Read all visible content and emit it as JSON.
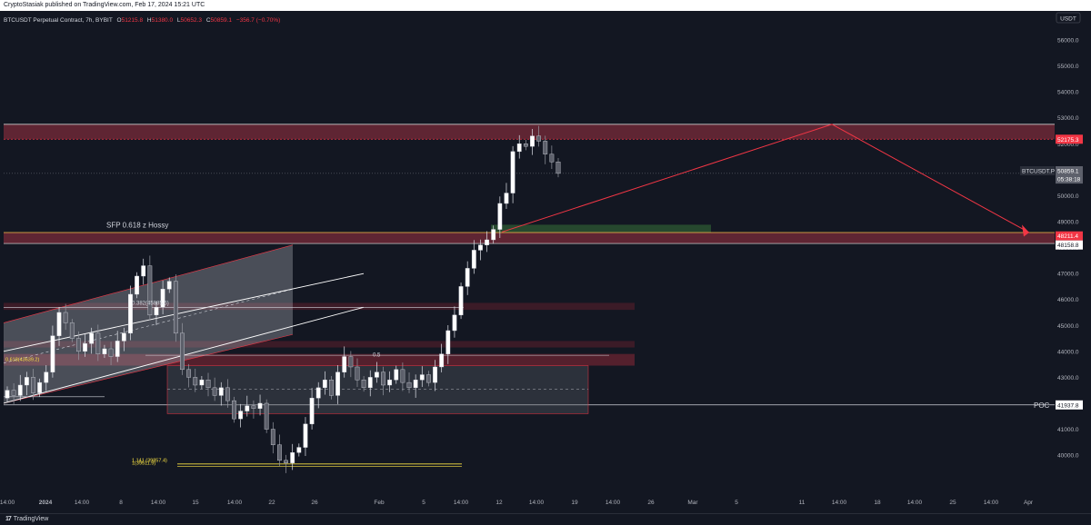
{
  "publisher_line": "CryptoStasiak published on TradingView.com, Feb 17, 2024 15:21 UTC",
  "chart_data": {
    "type": "candlestick",
    "symbol_line": {
      "symbol": "BTCUSDT Perpetual Contract, 7h, BYBIT",
      "o_label": "O",
      "o": "51215.8",
      "h_label": "H",
      "h": "51380.0",
      "l_label": "L",
      "l": "50652.3",
      "c_label": "C",
      "c": "50859.1",
      "change": "−356.7 (−0.70%)"
    },
    "currency": "USDT",
    "y_ticks": [
      "56000.0",
      "55000.0",
      "54000.0",
      "53000.0",
      "52000.0",
      "51000.0",
      "50000.0",
      "49000.0",
      "48000.0",
      "47000.0",
      "46000.0",
      "45000.0",
      "44000.0",
      "43000.0",
      "42000.0",
      "41000.0",
      "40000.0"
    ],
    "x_ticks": [
      "14:00",
      "2024",
      "14:00",
      "8",
      "14:00",
      "15",
      "14:00",
      "22",
      "26",
      "Feb",
      "5",
      "14:00",
      "12",
      "14:00",
      "19",
      "14:00",
      "26",
      "Mar",
      "5",
      "11",
      "14:00",
      "18",
      "14:00",
      "25",
      "14:00",
      "Apr"
    ],
    "price_labels": {
      "upper_zone": "52175.3",
      "current_symbol": "BTCUSDT.P",
      "current_price": "50859.1",
      "countdown": "05:38:18",
      "mid_zone": "48211.4",
      "mid_line": "48158.8",
      "poc_price": "41937.8"
    },
    "annotations": {
      "sfp": "SFP 0.618 z Hossy",
      "fib_0382": "0.382(45885.5)",
      "fib_0618": "0.618(43639.2)",
      "fib_05": "0.5",
      "fib_1141": "1.141 (39857.4)",
      "fib_1": "1(39511.9)",
      "poc": "POC"
    },
    "zones": [
      {
        "name": "upper-resistance",
        "y1": 52750,
        "y2": 52175,
        "color": "#7a2b3a"
      },
      {
        "name": "mid-resistance",
        "y1": 48580,
        "y2": 48158,
        "color": "#7a2b3a"
      },
      {
        "name": "green-fvg",
        "y1": 48880,
        "y2": 48580,
        "color": "#2e5a33"
      },
      {
        "name": "zone-45800",
        "y1": 45870,
        "y2": 45600,
        "color": "#4a1e2a"
      },
      {
        "name": "zone-44300",
        "y1": 44400,
        "y2": 44150,
        "color": "#4a1e2a"
      },
      {
        "name": "zone-43900",
        "y1": 43900,
        "y2": 43450,
        "color": "#6b2432"
      }
    ],
    "candles_close": [
      42500,
      42300,
      42700,
      43000,
      42400,
      42800,
      43200,
      44600,
      45500,
      45100,
      44500,
      44000,
      44300,
      44700,
      43900,
      44100,
      43800,
      44400,
      44700,
      46200,
      46900,
      47300,
      45400,
      45700,
      46400,
      46700,
      44700,
      43300,
      43000,
      42700,
      42900,
      42600,
      42300,
      42600,
      42100,
      41400,
      41700,
      41900,
      41800,
      42000,
      41000,
      40400,
      39800,
      39700,
      40100,
      40300,
      41200,
      42200,
      42600,
      42900,
      42300,
      43200,
      43800,
      43400,
      42900,
      42600,
      43000,
      43200,
      42700,
      42900,
      43300,
      42800,
      42600,
      42900,
      43100,
      42800,
      43400,
      43900,
      44800,
      45400,
      46500,
      47200,
      47900,
      48100,
      48300,
      48700,
      49700,
      50100,
      51700,
      52000,
      51900,
      52300,
      52100,
      51600,
      51300,
      50859
    ]
  }
}
